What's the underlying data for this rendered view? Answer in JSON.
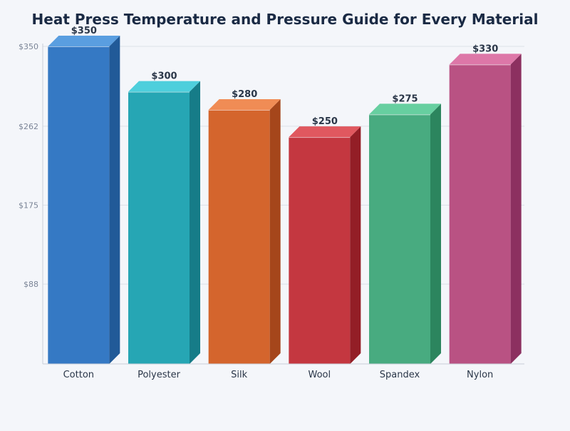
{
  "chart_data": {
    "type": "bar",
    "title": "Heat Press Temperature and Pressure Guide for Every Material",
    "xlabel": "",
    "ylabel": "",
    "categories": [
      "Cotton",
      "Polyester",
      "Silk",
      "Wool",
      "Spandex",
      "Nylon"
    ],
    "values": [
      350,
      300,
      280,
      250,
      275,
      330
    ],
    "data_labels": [
      "$350",
      "$300",
      "$280",
      "$250",
      "$275",
      "$330"
    ],
    "ylim": [
      0,
      350
    ],
    "yticks": [
      88,
      175,
      262,
      350
    ],
    "ytick_labels": [
      "$88",
      "$175",
      "$262",
      "$350"
    ],
    "grid": true,
    "legend": "none",
    "style": "3d-bar",
    "colors": {
      "front": [
        "#3579c4",
        "#26a6b4",
        "#d4652d",
        "#c43740",
        "#48ab80",
        "#b95283"
      ],
      "top": [
        "#5a9ee0",
        "#4ecfdc",
        "#f08c55",
        "#e0585f",
        "#67cfa0",
        "#dd77a8"
      ],
      "side": [
        "#215a98",
        "#167c88",
        "#a5461b",
        "#931e26",
        "#2c855e",
        "#8c3060"
      ],
      "title": "#1a2a44",
      "axis_text": "#2a3648",
      "tick_text": "#7a8496",
      "grid": "#dde1e8"
    }
  }
}
